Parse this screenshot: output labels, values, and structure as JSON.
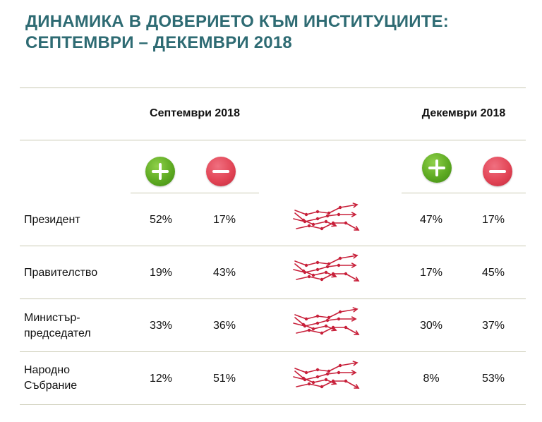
{
  "title": {
    "line1": "ДИНАМИКА В ДОВЕРИЕТО КЪМ ИНСТИТУЦИИТЕ:",
    "line2": "СЕПТЕМВРИ – ДЕКЕМВРИ 2018"
  },
  "columns": {
    "september": "Септември 2018",
    "december": "Декември 2018"
  },
  "icons": {
    "positive": "plus-icon",
    "negative": "minus-icon",
    "trend": "trend-arrows-icon"
  },
  "colors": {
    "title": "#2e6b73",
    "positive": "#5eaa22",
    "negative": "#e24556",
    "trend": "#c8203a"
  },
  "rows": [
    {
      "label_1": "Президент",
      "label_2": "",
      "sep_pos": "52%",
      "sep_neg": "17%",
      "dec_pos": "47%",
      "dec_neg": "17%"
    },
    {
      "label_1": "Правителство",
      "label_2": "",
      "sep_pos": "19%",
      "sep_neg": "43%",
      "dec_pos": "17%",
      "dec_neg": "45%"
    },
    {
      "label_1": "Министър-",
      "label_2": "председател",
      "sep_pos": "33%",
      "sep_neg": "36%",
      "dec_pos": "30%",
      "dec_neg": "37%"
    },
    {
      "label_1": "Народно",
      "label_2": "Събрание",
      "sep_pos": "12%",
      "sep_neg": "51%",
      "dec_pos": "8%",
      "dec_neg": "53%"
    }
  ]
}
